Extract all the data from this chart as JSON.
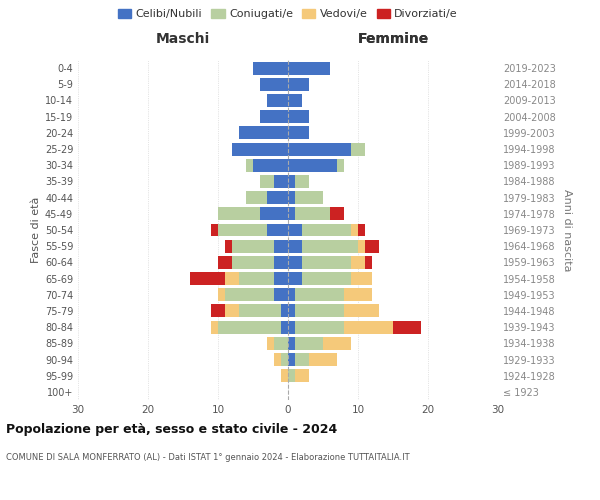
{
  "age_groups": [
    "100+",
    "95-99",
    "90-94",
    "85-89",
    "80-84",
    "75-79",
    "70-74",
    "65-69",
    "60-64",
    "55-59",
    "50-54",
    "45-49",
    "40-44",
    "35-39",
    "30-34",
    "25-29",
    "20-24",
    "15-19",
    "10-14",
    "5-9",
    "0-4"
  ],
  "birth_years": [
    "≤ 1923",
    "1924-1928",
    "1929-1933",
    "1934-1938",
    "1939-1943",
    "1944-1948",
    "1949-1953",
    "1954-1958",
    "1959-1963",
    "1964-1968",
    "1969-1973",
    "1974-1978",
    "1979-1983",
    "1984-1988",
    "1989-1993",
    "1994-1998",
    "1999-2003",
    "2004-2008",
    "2009-2013",
    "2014-2018",
    "2019-2023"
  ],
  "colors": {
    "celibi": "#4472c4",
    "coniugati": "#b8cfa0",
    "vedovi": "#f5c97a",
    "divorziati": "#cc2222"
  },
  "males": {
    "celibi": [
      0,
      0,
      0,
      0,
      1,
      1,
      2,
      2,
      2,
      2,
      3,
      4,
      3,
      2,
      5,
      8,
      7,
      4,
      3,
      4,
      5
    ],
    "coniugati": [
      0,
      0,
      1,
      2,
      9,
      6,
      7,
      5,
      6,
      6,
      7,
      6,
      3,
      2,
      1,
      0,
      0,
      0,
      0,
      0,
      0
    ],
    "vedovi": [
      0,
      1,
      1,
      1,
      1,
      2,
      1,
      2,
      0,
      0,
      0,
      0,
      0,
      0,
      0,
      0,
      0,
      0,
      0,
      0,
      0
    ],
    "divorziati": [
      0,
      0,
      0,
      0,
      0,
      2,
      0,
      5,
      2,
      1,
      1,
      0,
      0,
      0,
      0,
      0,
      0,
      0,
      0,
      0,
      0
    ]
  },
  "females": {
    "celibi": [
      0,
      0,
      1,
      1,
      1,
      1,
      1,
      2,
      2,
      2,
      2,
      1,
      1,
      1,
      7,
      9,
      3,
      3,
      2,
      3,
      6
    ],
    "coniugati": [
      0,
      1,
      2,
      4,
      7,
      7,
      7,
      7,
      7,
      8,
      7,
      5,
      4,
      2,
      1,
      2,
      0,
      0,
      0,
      0,
      0
    ],
    "vedovi": [
      0,
      2,
      4,
      4,
      7,
      5,
      4,
      3,
      2,
      1,
      1,
      0,
      0,
      0,
      0,
      0,
      0,
      0,
      0,
      0,
      0
    ],
    "divorziati": [
      0,
      0,
      0,
      0,
      4,
      0,
      0,
      0,
      1,
      2,
      1,
      2,
      0,
      0,
      0,
      0,
      0,
      0,
      0,
      0,
      0
    ]
  },
  "title": "Popolazione per età, sesso e stato civile - 2024",
  "subtitle": "COMUNE DI SALA MONFERRATO (AL) - Dati ISTAT 1° gennaio 2024 - Elaborazione TUTTAITALIA.IT",
  "xlabel_left": "Maschi",
  "xlabel_right": "Femmine",
  "ylabel_left": "Fasce di età",
  "ylabel_right": "Anni di nascita",
  "xlim": 30,
  "legend_labels": [
    "Celibi/Nubili",
    "Coniugati/e",
    "Vedovi/e",
    "Divorziati/e"
  ]
}
